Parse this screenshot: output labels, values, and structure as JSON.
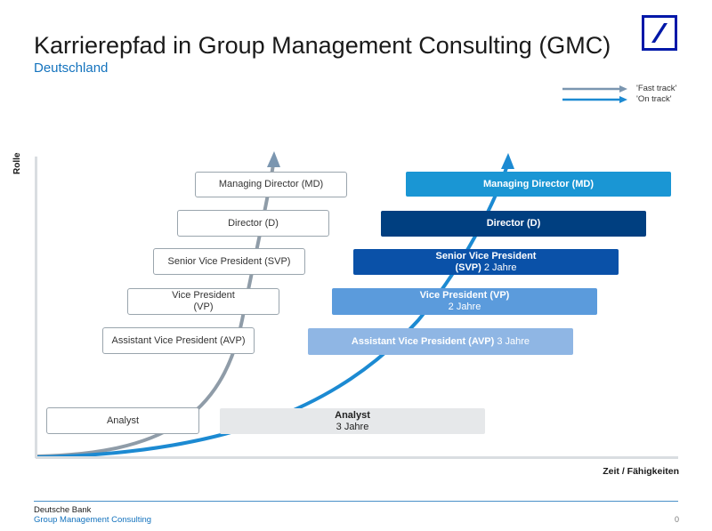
{
  "header": {
    "title": "Karrierepfad in Group Management Consulting (GMC)",
    "subtitle": "Deutschland"
  },
  "legend": {
    "fast_track": "'Fast track'",
    "on_track": "'On track'",
    "fast_color": "#7b96b0",
    "on_color": "#1c8ad2"
  },
  "axes": {
    "y_label": "Rolle",
    "x_label": "Zeit / Fähigkeiten"
  },
  "fast_track_roles": [
    {
      "label": "Managing Director (MD)"
    },
    {
      "label": "Director (D)"
    },
    {
      "label": "Senior Vice President (SVP)"
    },
    {
      "label": "Vice President",
      "label2": "(VP)"
    },
    {
      "label": "Assistant Vice President (AVP)"
    },
    {
      "label": "Analyst"
    }
  ],
  "on_track_roles": [
    {
      "label": "Managing Director (MD)",
      "duration": "",
      "color": "#1a96d4"
    },
    {
      "label": "Director (D)",
      "duration": "",
      "color": "#003f80"
    },
    {
      "label": "Senior Vice President",
      "label2": "(SVP)",
      "duration": "2 Jahre",
      "color": "#0a51a8"
    },
    {
      "label": "Vice President (VP)",
      "duration": "2 Jahre",
      "color": "#5b9bdc"
    },
    {
      "label": "Assistant Vice President (AVP)",
      "duration": "3 Jahre",
      "color": "#8fb6e4"
    },
    {
      "label": "Analyst",
      "duration": "3 Jahre",
      "color": "#e6e8ea"
    }
  ],
  "footer": {
    "company": "Deutsche Bank",
    "department": "Group Management Consulting",
    "page": "0"
  },
  "icons": {
    "logo": "deutsche-bank-logo",
    "fast_arrow": "arrow-right-icon",
    "on_arrow": "arrow-right-icon"
  }
}
